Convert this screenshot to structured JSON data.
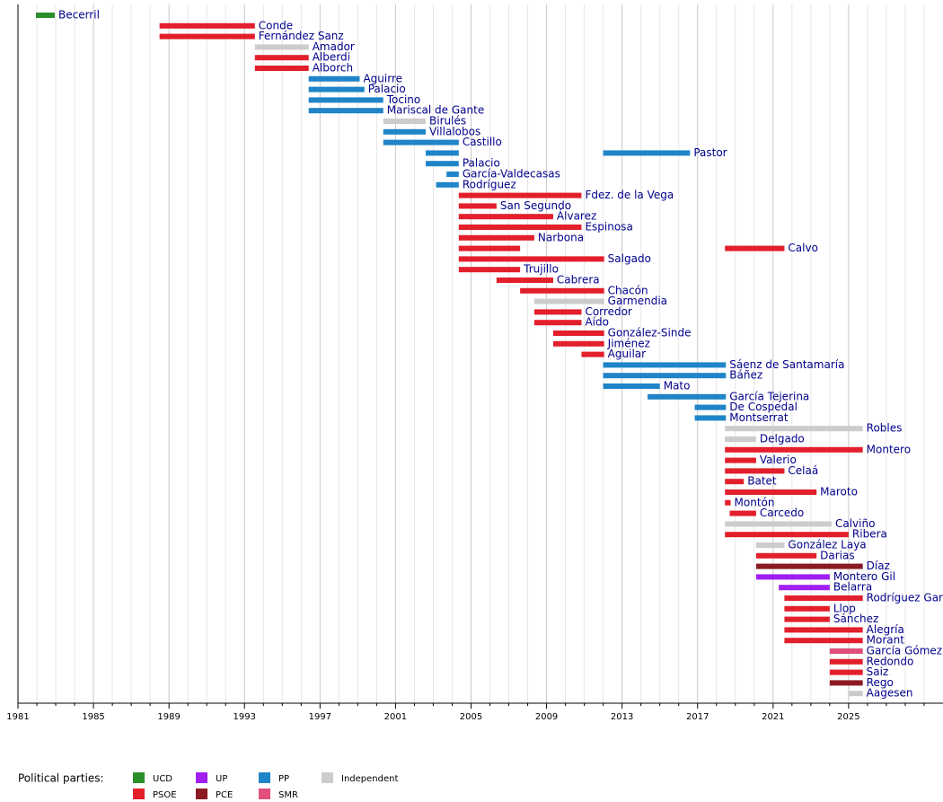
{
  "chart_data": {
    "type": "timeline",
    "legend_title": "Political parties:",
    "parties": [
      {
        "name": "UCD",
        "color": "#2a8f2a"
      },
      {
        "name": "PSOE",
        "color": "#e21f2b"
      },
      {
        "name": "UP",
        "color": "#a01ff0"
      },
      {
        "name": "PCE",
        "color": "#8b1a22"
      },
      {
        "name": "PP",
        "color": "#1f84c8"
      },
      {
        "name": "SMR",
        "color": "#e0507a"
      },
      {
        "name": "Independent",
        "color": "#cccccc"
      }
    ],
    "xlim": [
      1981,
      2030
    ],
    "xticks": [
      1981,
      1985,
      1989,
      1993,
      1997,
      2001,
      2005,
      2009,
      2013,
      2017,
      2021,
      2025
    ],
    "minor_xticks": [
      1982,
      1983,
      1984,
      1986,
      1987,
      1988,
      1990,
      1991,
      1992,
      1994,
      1995,
      1996,
      1998,
      1999,
      2000,
      2002,
      2003,
      2004,
      2006,
      2007,
      2008,
      2010,
      2011,
      2012,
      2014,
      2015,
      2016,
      2018,
      2019,
      2020,
      2022,
      2023,
      2024,
      2026,
      2027,
      2028,
      2029
    ],
    "grid": true,
    "rows": [
      {
        "label": "Becerril",
        "party": "UCD",
        "spans": [
          [
            1981.95,
            1982.95
          ]
        ]
      },
      {
        "label": "Conde",
        "party": "PSOE",
        "spans": [
          [
            1988.5,
            1993.55
          ]
        ]
      },
      {
        "label": "Fernández Sanz",
        "party": "PSOE",
        "spans": [
          [
            1988.5,
            1993.55
          ]
        ]
      },
      {
        "label": "Amador",
        "party": "Independent",
        "spans": [
          [
            1993.55,
            1996.4
          ]
        ]
      },
      {
        "label": "Alberdi",
        "party": "PSOE",
        "spans": [
          [
            1993.55,
            1996.4
          ]
        ]
      },
      {
        "label": "Alborch",
        "party": "PSOE",
        "spans": [
          [
            1993.55,
            1996.4
          ]
        ]
      },
      {
        "label": "Aguirre",
        "party": "PP",
        "spans": [
          [
            1996.4,
            1999.1
          ]
        ]
      },
      {
        "label": "Palacio",
        "party": "PP",
        "spans": [
          [
            1996.4,
            1999.35
          ]
        ]
      },
      {
        "label": "Tocino",
        "party": "PP",
        "spans": [
          [
            1996.4,
            2000.35
          ]
        ]
      },
      {
        "label": "Mariscal de Gante",
        "party": "PP",
        "spans": [
          [
            1996.4,
            2000.35
          ]
        ]
      },
      {
        "label": "Birulés",
        "party": "Independent",
        "spans": [
          [
            2000.35,
            2002.6
          ]
        ]
      },
      {
        "label": "Villalobos",
        "party": "PP",
        "spans": [
          [
            2000.35,
            2002.6
          ]
        ]
      },
      {
        "label": "Castillo",
        "party": "PP",
        "spans": [
          [
            2000.35,
            2004.35
          ]
        ]
      },
      {
        "label": "Pastor",
        "party": "PP",
        "spans": [
          [
            2002.6,
            2004.35
          ],
          [
            2012.0,
            2016.6
          ]
        ]
      },
      {
        "label": "Palacio",
        "party": "PP",
        "spans": [
          [
            2002.6,
            2004.35
          ]
        ]
      },
      {
        "label": "García-Valdecasas",
        "party": "PP",
        "spans": [
          [
            2003.7,
            2004.35
          ]
        ]
      },
      {
        "label": "Rodríguez",
        "party": "PP",
        "spans": [
          [
            2003.15,
            2004.35
          ]
        ]
      },
      {
        "label": "Fdez. de la Vega",
        "party": "PSOE",
        "spans": [
          [
            2004.35,
            2010.85
          ]
        ]
      },
      {
        "label": "San Segundo",
        "party": "PSOE",
        "spans": [
          [
            2004.35,
            2006.35
          ]
        ]
      },
      {
        "label": "Álvarez",
        "party": "PSOE",
        "spans": [
          [
            2004.35,
            2009.35
          ]
        ]
      },
      {
        "label": "Espinosa",
        "party": "PSOE",
        "spans": [
          [
            2004.35,
            2010.85
          ]
        ]
      },
      {
        "label": "Narbona",
        "party": "PSOE",
        "spans": [
          [
            2004.35,
            2008.35
          ]
        ]
      },
      {
        "label": "Calvo",
        "party": "PSOE",
        "spans": [
          [
            2004.35,
            2007.6
          ],
          [
            2018.45,
            2021.6
          ]
        ]
      },
      {
        "label": "Salgado",
        "party": "PSOE",
        "spans": [
          [
            2004.35,
            2012.05
          ]
        ]
      },
      {
        "label": "Trujillo",
        "party": "PSOE",
        "spans": [
          [
            2004.35,
            2007.6
          ]
        ]
      },
      {
        "label": "Cabrera",
        "party": "PSOE",
        "spans": [
          [
            2006.35,
            2009.35
          ]
        ]
      },
      {
        "label": "Chacón",
        "party": "PSOE",
        "spans": [
          [
            2007.6,
            2012.05
          ]
        ]
      },
      {
        "label": "Garmendia",
        "party": "Independent",
        "spans": [
          [
            2008.35,
            2012.05
          ]
        ]
      },
      {
        "label": "Corredor",
        "party": "PSOE",
        "spans": [
          [
            2008.35,
            2010.85
          ]
        ]
      },
      {
        "label": "Aído",
        "party": "PSOE",
        "spans": [
          [
            2008.35,
            2010.85
          ]
        ]
      },
      {
        "label": "González-Sinde",
        "party": "PSOE",
        "spans": [
          [
            2009.35,
            2012.05
          ]
        ]
      },
      {
        "label": "Jiménez",
        "party": "PSOE",
        "spans": [
          [
            2009.35,
            2012.05
          ]
        ]
      },
      {
        "label": "Aguilar",
        "party": "PSOE",
        "spans": [
          [
            2010.85,
            2012.05
          ]
        ]
      },
      {
        "label": "Sáenz de Santamaría",
        "party": "PP",
        "spans": [
          [
            2012.0,
            2018.5
          ]
        ]
      },
      {
        "label": "Báñez",
        "party": "PP",
        "spans": [
          [
            2012.0,
            2018.5
          ]
        ]
      },
      {
        "label": "Mato",
        "party": "PP",
        "spans": [
          [
            2012.0,
            2015.0
          ]
        ]
      },
      {
        "label": "García Tejerina",
        "party": "PP",
        "spans": [
          [
            2014.35,
            2018.5
          ]
        ]
      },
      {
        "label": "De Cospedal",
        "party": "PP",
        "spans": [
          [
            2016.85,
            2018.5
          ]
        ]
      },
      {
        "label": "Montserrat",
        "party": "PP",
        "spans": [
          [
            2016.85,
            2018.5
          ]
        ]
      },
      {
        "label": "Robles",
        "party": "Independent",
        "spans": [
          [
            2018.45,
            2025.75
          ]
        ]
      },
      {
        "label": "Delgado",
        "party": "Independent",
        "spans": [
          [
            2018.45,
            2020.1
          ]
        ]
      },
      {
        "label": "Montero",
        "party": "PSOE",
        "spans": [
          [
            2018.45,
            2025.75
          ]
        ]
      },
      {
        "label": "Valerio",
        "party": "PSOE",
        "spans": [
          [
            2018.45,
            2020.1
          ]
        ]
      },
      {
        "label": "Celaá",
        "party": "PSOE",
        "spans": [
          [
            2018.45,
            2021.6
          ]
        ]
      },
      {
        "label": "Batet",
        "party": "PSOE",
        "spans": [
          [
            2018.45,
            2019.45
          ]
        ]
      },
      {
        "label": "Maroto",
        "party": "PSOE",
        "spans": [
          [
            2018.45,
            2023.3
          ]
        ]
      },
      {
        "label": "Montón",
        "party": "PSOE",
        "spans": [
          [
            2018.45,
            2018.75
          ]
        ]
      },
      {
        "label": "Carcedo",
        "party": "PSOE",
        "spans": [
          [
            2018.7,
            2020.1
          ]
        ]
      },
      {
        "label": "Calviño",
        "party": "Independent",
        "spans": [
          [
            2018.45,
            2024.1
          ]
        ]
      },
      {
        "label": "Ribera",
        "party": "PSOE",
        "spans": [
          [
            2018.45,
            2025.0
          ]
        ]
      },
      {
        "label": "González Laya",
        "party": "Independent",
        "spans": [
          [
            2020.1,
            2021.6
          ]
        ]
      },
      {
        "label": "Darias",
        "party": "PSOE",
        "spans": [
          [
            2020.1,
            2023.3
          ]
        ]
      },
      {
        "label": "Díaz",
        "party": "PCE",
        "spans": [
          [
            2020.1,
            2025.75
          ]
        ]
      },
      {
        "label": "Montero Gil",
        "party": "UP",
        "spans": [
          [
            2020.1,
            2024.0
          ]
        ]
      },
      {
        "label": "Belarra",
        "party": "UP",
        "spans": [
          [
            2021.3,
            2024.0
          ]
        ]
      },
      {
        "label": "Rodríguez Gar",
        "party": "PSOE",
        "spans": [
          [
            2021.6,
            2025.75
          ]
        ]
      },
      {
        "label": "Llop",
        "party": "PSOE",
        "spans": [
          [
            2021.6,
            2024.0
          ]
        ]
      },
      {
        "label": "Sánchez",
        "party": "PSOE",
        "spans": [
          [
            2021.6,
            2024.0
          ]
        ]
      },
      {
        "label": "Alegría",
        "party": "PSOE",
        "spans": [
          [
            2021.6,
            2025.75
          ]
        ]
      },
      {
        "label": "Morant",
        "party": "PSOE",
        "spans": [
          [
            2021.6,
            2025.75
          ]
        ]
      },
      {
        "label": "García Gómez",
        "party": "SMR",
        "spans": [
          [
            2024.0,
            2025.75
          ]
        ]
      },
      {
        "label": "Redondo",
        "party": "PSOE",
        "spans": [
          [
            2024.0,
            2025.75
          ]
        ]
      },
      {
        "label": "Saiz",
        "party": "PSOE",
        "spans": [
          [
            2024.0,
            2025.75
          ]
        ]
      },
      {
        "label": "Rego",
        "party": "PCE",
        "spans": [
          [
            2024.0,
            2025.75
          ]
        ]
      },
      {
        "label": "Aagesen",
        "party": "Independent",
        "spans": [
          [
            2025.0,
            2025.75
          ]
        ]
      }
    ]
  }
}
